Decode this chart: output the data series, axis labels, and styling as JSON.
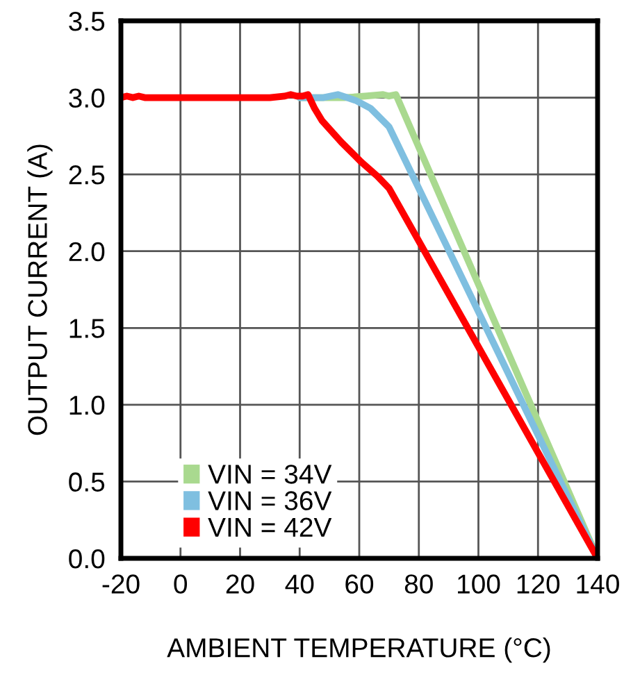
{
  "chart_data": {
    "type": "line",
    "xlabel": "AMBIENT TEMPERATURE (°C)",
    "ylabel": "OUTPUT CURRENT (A)",
    "xlim": [
      -20,
      140
    ],
    "xticks": [
      -20,
      0,
      20,
      40,
      60,
      80,
      100,
      120,
      140
    ],
    "ylim": [
      0,
      3.5
    ],
    "yticks": [
      {
        "value": 0,
        "label": "0.0"
      },
      0.5,
      {
        "value": 1,
        "label": "1.0"
      },
      1.5,
      {
        "value": 2,
        "label": "2.0"
      },
      2.5,
      {
        "value": 3,
        "label": "3.0"
      },
      3.5
    ],
    "grid": true,
    "legend": "bottom left",
    "series": [
      {
        "name": "VIN = 34V",
        "color": "#a9d98f",
        "x": [
          40,
          55,
          62,
          68,
          70,
          72.3,
          140
        ],
        "values": [
          3.0,
          3.0,
          3.01,
          3.02,
          3.01,
          3.02,
          0.0
        ]
      },
      {
        "name": "VIN = 36V",
        "color": "#7fbfe0",
        "x": [
          40,
          48,
          52.8,
          56,
          59,
          63.8,
          70,
          140
        ],
        "values": [
          3.0,
          3.0,
          3.02,
          3.0,
          2.98,
          2.93,
          2.81,
          0.0
        ]
      },
      {
        "name": "VIN = 42V",
        "color": "#ff0000",
        "x": [
          -20,
          -18,
          -16,
          -14,
          -12,
          -10,
          0,
          20,
          30,
          35,
          37,
          39,
          41,
          42.8,
          45,
          47.5,
          54,
          60.7,
          66,
          70,
          140
        ],
        "values": [
          3.0,
          3.01,
          3.0,
          3.01,
          3.0,
          3.0,
          3.0,
          3.0,
          3.0,
          3.01,
          3.02,
          3.01,
          3.01,
          3.02,
          2.93,
          2.85,
          2.71,
          2.58,
          2.49,
          2.41,
          0.0
        ]
      }
    ]
  }
}
